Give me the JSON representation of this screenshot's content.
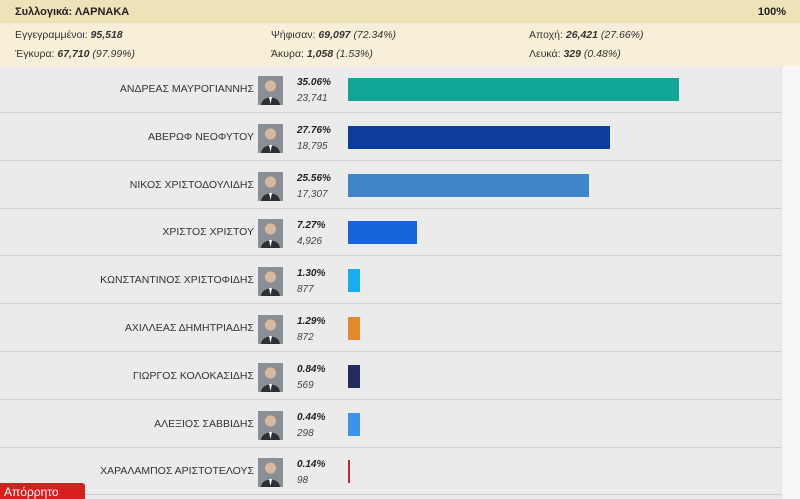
{
  "header": {
    "district": "Συλλογικά: ΛΑΡΝΑΚΑ",
    "percent": "100%"
  },
  "stats": {
    "registered": {
      "label": "Εγγεγραμμένοι:",
      "value": "95,518"
    },
    "voted": {
      "label": "Ψήφισαν:",
      "value": "69,097",
      "pct": "(72.34%)"
    },
    "abstention": {
      "label": "Αποχή:",
      "value": "26,421",
      "pct": "(27.66%)"
    },
    "valid": {
      "label": "Έγκυρα:",
      "value": "67,710",
      "pct": "(97.99%)"
    },
    "invalid": {
      "label": "Άκυρα:",
      "value": "1,058",
      "pct": "(1.53%)"
    },
    "blank": {
      "label": "Λευκά:",
      "value": "329",
      "pct": "(0.48%)"
    }
  },
  "badge": "Απόρρητο",
  "chart_data": {
    "type": "bar",
    "orientation": "horizontal",
    "categories": [
      "ΑΝΔΡΕΑΣ ΜΑΥΡΟΓΙΑΝΝΗΣ",
      "ΑΒΕΡΩΦ ΝΕΟΦΥΤΟΥ",
      "ΝΙΚΟΣ ΧΡΙΣΤΟΔΟΥΛΙΔΗΣ",
      "ΧΡΙΣΤΟΣ ΧΡΙΣΤΟΥ",
      "ΚΩΝΣΤΑΝΤΙΝΟΣ ΧΡΙΣΤΟΦΙΔΗΣ",
      "ΑΧΙΛΛΕΑΣ ΔΗΜΗΤΡΙΑΔΗΣ",
      "ΓΙΩΡΓΟΣ ΚΟΛΟΚΑΣΙΔΗΣ",
      "ΑΛΕΞΙΟΣ ΣΑΒΒΙΔΗΣ",
      "ΧΑΡΑΛΑΜΠΟΣ ΑΡΙΣΤΟΤΕΛΟΥΣ"
    ],
    "values": [
      35.06,
      27.76,
      25.56,
      7.27,
      1.3,
      1.29,
      0.84,
      0.44,
      0.14
    ],
    "pct_labels": [
      "35.06%",
      "27.76%",
      "25.56%",
      "7.27%",
      "1.30%",
      "1.29%",
      "0.84%",
      "0.44%",
      "0.14%"
    ],
    "votes": [
      "23,741",
      "18,795",
      "17,307",
      "4,926",
      "877",
      "872",
      "569",
      "298",
      "98"
    ],
    "colors": [
      "#10a597",
      "#0b3c9e",
      "#3e86c9",
      "#1565d8",
      "#17aef0",
      "#e08a2c",
      "#252b5c",
      "#3b94ea",
      "#c0262d"
    ],
    "grid": false,
    "legend": "none"
  }
}
